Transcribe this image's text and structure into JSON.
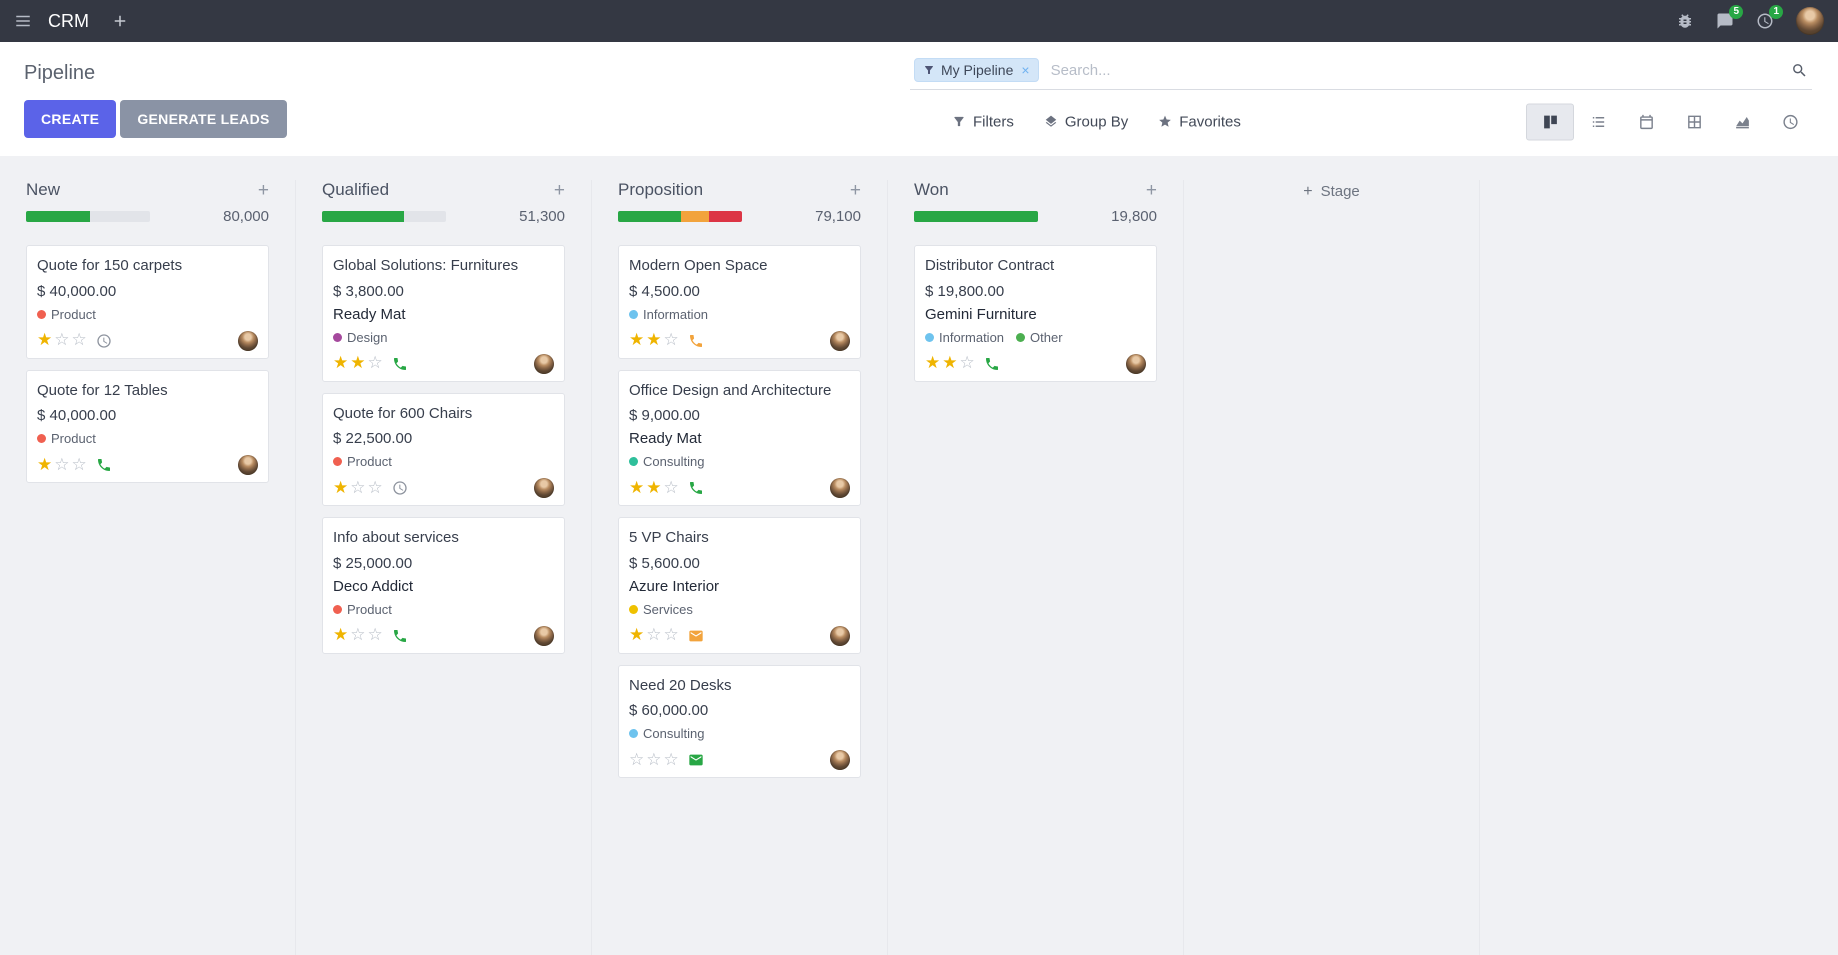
{
  "theme": {
    "topbar_bg": "#343843",
    "accent": "#5B63E8",
    "secondary_btn_bg": "#8A93A5",
    "success": "#28A745",
    "warning": "#F2A33C",
    "danger": "#DC3545",
    "star_color": "#EFB400",
    "kanban_bg": "#F0F1F4",
    "facet_bg": "#D4E6F8",
    "badge_bg": "#28A745"
  },
  "topbar": {
    "app_name": "CRM",
    "message_badge": "5",
    "activity_badge": "1"
  },
  "control_panel": {
    "title": "Pipeline",
    "search": {
      "facet_label": "My Pipeline",
      "placeholder": "Search...",
      "remove_label": "×"
    },
    "create_label": "CREATE",
    "generate_leads_label": "GENERATE LEADS",
    "filters_label": "Filters",
    "group_by_label": "Group By",
    "favorites_label": "Favorites"
  },
  "kanban": {
    "stars_total": 3,
    "add_stage_label": "Stage",
    "columns": [
      {
        "title": "New",
        "count": "80,000",
        "progress": [
          {
            "color": "#28A745",
            "pct": 52
          }
        ],
        "cards": [
          {
            "title": "Quote for 150 carpets",
            "amount": "$ 40,000.00",
            "partner": "",
            "tags": [
              {
                "label": "Product",
                "color": "#F06050"
              }
            ],
            "stars_filled": 1,
            "activity": {
              "icon": "clock",
              "color": "#8D939E"
            }
          },
          {
            "title": "Quote for 12 Tables",
            "amount": "$ 40,000.00",
            "partner": "",
            "tags": [
              {
                "label": "Product",
                "color": "#F06050"
              }
            ],
            "stars_filled": 1,
            "activity": {
              "icon": "phone",
              "color": "#28A745"
            }
          }
        ]
      },
      {
        "title": "Qualified",
        "count": "51,300",
        "progress": [
          {
            "color": "#28A745",
            "pct": 66
          }
        ],
        "cards": [
          {
            "title": "Global Solutions: Furnitures",
            "amount": "$ 3,800.00",
            "partner": "Ready Mat",
            "tags": [
              {
                "label": "Design",
                "color": "#A5499D"
              }
            ],
            "stars_filled": 2,
            "activity": {
              "icon": "phone",
              "color": "#28A745"
            }
          },
          {
            "title": "Quote for 600 Chairs",
            "amount": "$ 22,500.00",
            "partner": "",
            "tags": [
              {
                "label": "Product",
                "color": "#F06050"
              }
            ],
            "stars_filled": 1,
            "activity": {
              "icon": "clock",
              "color": "#8D939E"
            }
          },
          {
            "title": "Info about services",
            "amount": "$ 25,000.00",
            "partner": "Deco Addict",
            "tags": [
              {
                "label": "Product",
                "color": "#F06050"
              }
            ],
            "stars_filled": 1,
            "activity": {
              "icon": "phone",
              "color": "#28A745"
            }
          }
        ]
      },
      {
        "title": "Proposition",
        "count": "79,100",
        "progress": [
          {
            "color": "#28A745",
            "pct": 51
          },
          {
            "color": "#F2A33C",
            "pct": 22
          },
          {
            "color": "#DC3545",
            "pct": 27
          }
        ],
        "cards": [
          {
            "title": "Modern Open Space",
            "amount": "$ 4,500.00",
            "partner": "",
            "tags": [
              {
                "label": "Information",
                "color": "#6EC3EE"
              }
            ],
            "stars_filled": 2,
            "activity": {
              "icon": "phone",
              "color": "#F2A33C"
            }
          },
          {
            "title": "Office Design and Architecture",
            "amount": "$ 9,000.00",
            "partner": "Ready Mat",
            "tags": [
              {
                "label": "Consulting",
                "color": "#2FBF9B"
              }
            ],
            "stars_filled": 2,
            "activity": {
              "icon": "phone",
              "color": "#28A745"
            }
          },
          {
            "title": "5 VP Chairs",
            "amount": "$ 5,600.00",
            "partner": "Azure Interior",
            "tags": [
              {
                "label": "Services",
                "color": "#EFC100"
              }
            ],
            "stars_filled": 1,
            "activity": {
              "icon": "envelope",
              "color": "#F2A33C"
            }
          },
          {
            "title": "Need 20 Desks",
            "amount": "$ 60,000.00",
            "partner": "",
            "tags": [
              {
                "label": "Consulting",
                "color": "#6EC3EE"
              }
            ],
            "stars_filled": 0,
            "activity": {
              "icon": "envelope",
              "color": "#28A745"
            }
          }
        ]
      },
      {
        "title": "Won",
        "count": "19,800",
        "progress": [
          {
            "color": "#28A745",
            "pct": 100
          }
        ],
        "cards": [
          {
            "title": "Distributor Contract",
            "amount": "$ 19,800.00",
            "partner": "Gemini Furniture",
            "tags": [
              {
                "label": "Information",
                "color": "#6EC3EE"
              },
              {
                "label": "Other",
                "color": "#4CAF50"
              }
            ],
            "stars_filled": 2,
            "activity": {
              "icon": "phone",
              "color": "#28A745"
            }
          }
        ]
      }
    ]
  }
}
